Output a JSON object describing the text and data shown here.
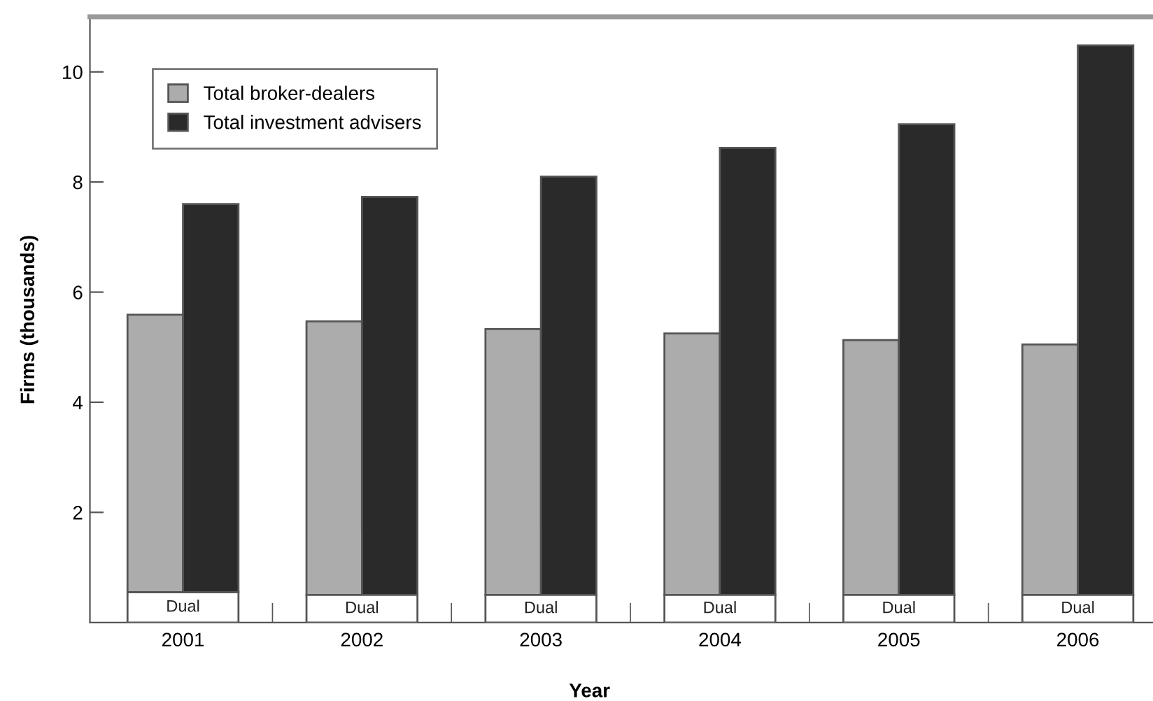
{
  "chart_data": {
    "type": "bar",
    "xlabel": "Year",
    "ylabel": "Firms (thousands)",
    "categories": [
      "2001",
      "2002",
      "2003",
      "2004",
      "2005",
      "2006"
    ],
    "series": [
      {
        "name": "Dual",
        "color": "#ffffff",
        "values": [
          0.55,
          0.5,
          0.5,
          0.5,
          0.5,
          0.5
        ]
      },
      {
        "name": "Total broker-dealers",
        "color": "#acacac",
        "base": [
          0.55,
          0.5,
          0.5,
          0.5,
          0.5,
          0.5
        ],
        "values": [
          5.04,
          4.97,
          4.83,
          4.75,
          4.63,
          4.55
        ]
      },
      {
        "name": "Total investment advisers",
        "color": "#2a2a2a",
        "base": [
          0.55,
          0.5,
          0.5,
          0.5,
          0.5,
          0.5
        ],
        "values": [
          7.05,
          7.23,
          7.6,
          8.12,
          8.55,
          9.98
        ]
      }
    ],
    "ylim": [
      0,
      11
    ],
    "yticks": [
      2,
      4,
      6,
      8,
      10
    ],
    "grid": false,
    "legend": "top left"
  }
}
